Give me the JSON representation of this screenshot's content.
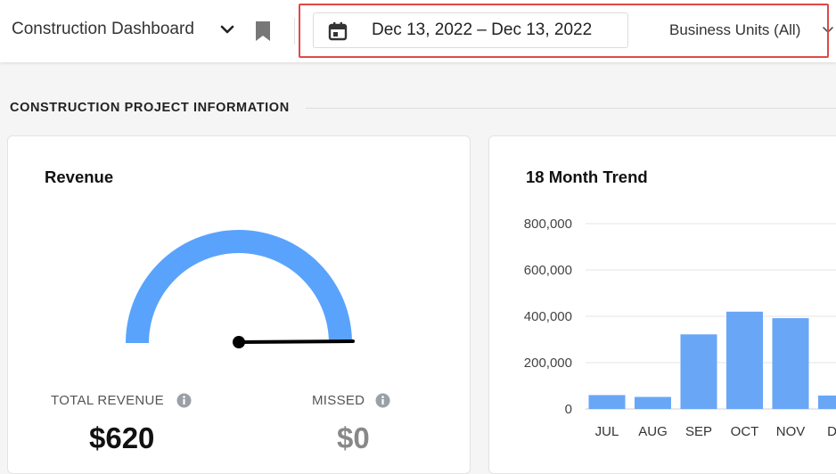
{
  "header": {
    "dashboard_title": "Construction Dashboard",
    "date_range": "Dec 13, 2022 – Dec 13, 2022",
    "business_units": "Business Units (All)",
    "icons": [
      "chevron-down-icon",
      "bookmark-icon",
      "calendar-icon"
    ],
    "highlight_color": "#e04848"
  },
  "section": {
    "title": "CONSTRUCTION PROJECT INFORMATION"
  },
  "revenue_card": {
    "title": "Revenue",
    "gauge": {
      "fill_color": "#5aa3fc",
      "needle_color": "#000000"
    },
    "total_revenue": {
      "label": "TOTAL REVENUE",
      "value": "$620"
    },
    "missed": {
      "label": "MISSED",
      "value": "$0"
    }
  },
  "trend_card": {
    "title": "18 Month Trend"
  },
  "chart_data": {
    "type": "bar",
    "title": "18 Month Trend",
    "categories": [
      "JUL",
      "AUG",
      "SEP",
      "OCT",
      "NOV",
      "DE"
    ],
    "values": [
      60000,
      52000,
      322000,
      420000,
      392000,
      58000
    ],
    "ylim": [
      0,
      800000
    ],
    "yticks": [
      "0",
      "200,000",
      "400,000",
      "600,000",
      "800,000"
    ],
    "ytick_values": [
      0,
      200000,
      400000,
      600000,
      800000
    ],
    "bar_color": "#6aa6f6",
    "grid": true
  }
}
